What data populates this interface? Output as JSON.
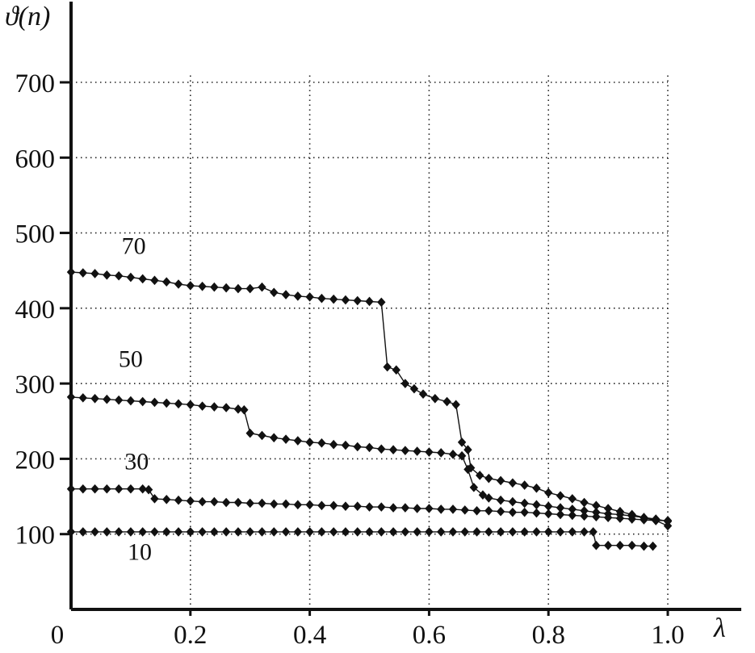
{
  "chart_data": {
    "type": "line",
    "title": "",
    "ylabel": "ϑ(n)",
    "xlabel": "λ",
    "xlim": [
      0,
      1.08
    ],
    "ylim": [
      0,
      770
    ],
    "grid": "dotted",
    "legend_position": "none",
    "marker": "diamond",
    "color": "#111111",
    "yticks": [
      {
        "value": 100,
        "label": "100"
      },
      {
        "value": 200,
        "label": "200"
      },
      {
        "value": 300,
        "label": "300"
      },
      {
        "value": 400,
        "label": "400"
      },
      {
        "value": 500,
        "label": "500"
      },
      {
        "value": 600,
        "label": "600"
      },
      {
        "value": 700,
        "label": "700"
      }
    ],
    "xticks": [
      {
        "value": 0,
        "label": "0"
      },
      {
        "value": 0.2,
        "label": "0.2"
      },
      {
        "value": 0.4,
        "label": "0.4"
      },
      {
        "value": 0.6,
        "label": "0.6"
      },
      {
        "value": 0.8,
        "label": "0.8"
      },
      {
        "value": 1.0,
        "label": "1.0"
      }
    ],
    "series": [
      {
        "name": "70",
        "label": "70",
        "label_x": 0.105,
        "label_y": 472,
        "points": [
          [
            0,
            448
          ],
          [
            0.02,
            447
          ],
          [
            0.04,
            446
          ],
          [
            0.06,
            444
          ],
          [
            0.08,
            443
          ],
          [
            0.1,
            441
          ],
          [
            0.12,
            439
          ],
          [
            0.14,
            437
          ],
          [
            0.16,
            435
          ],
          [
            0.18,
            432
          ],
          [
            0.2,
            430
          ],
          [
            0.22,
            429
          ],
          [
            0.24,
            428
          ],
          [
            0.26,
            427
          ],
          [
            0.28,
            426
          ],
          [
            0.3,
            426
          ],
          [
            0.32,
            428
          ],
          [
            0.34,
            421
          ],
          [
            0.36,
            418
          ],
          [
            0.38,
            416
          ],
          [
            0.4,
            415
          ],
          [
            0.42,
            413
          ],
          [
            0.44,
            412
          ],
          [
            0.46,
            411
          ],
          [
            0.48,
            410
          ],
          [
            0.5,
            409
          ],
          [
            0.52,
            408
          ],
          [
            0.53,
            322
          ],
          [
            0.545,
            318
          ],
          [
            0.56,
            300
          ],
          [
            0.575,
            293
          ],
          [
            0.59,
            286
          ],
          [
            0.61,
            280
          ],
          [
            0.63,
            276
          ],
          [
            0.645,
            272
          ],
          [
            0.655,
            222
          ],
          [
            0.665,
            212
          ],
          [
            0.67,
            188
          ],
          [
            0.685,
            178
          ],
          [
            0.7,
            174
          ],
          [
            0.72,
            171
          ],
          [
            0.74,
            168
          ],
          [
            0.76,
            165
          ],
          [
            0.78,
            161
          ],
          [
            0.8,
            155
          ],
          [
            0.82,
            151
          ],
          [
            0.84,
            147
          ],
          [
            0.86,
            142
          ],
          [
            0.88,
            138
          ],
          [
            0.9,
            134
          ],
          [
            0.92,
            130
          ],
          [
            0.94,
            126
          ],
          [
            0.96,
            122
          ],
          [
            0.98,
            118
          ],
          [
            1.0,
            111
          ]
        ]
      },
      {
        "name": "50",
        "label": "50",
        "label_x": 0.1,
        "label_y": 322,
        "points": [
          [
            0,
            282
          ],
          [
            0.02,
            281
          ],
          [
            0.04,
            280
          ],
          [
            0.06,
            279
          ],
          [
            0.08,
            278
          ],
          [
            0.1,
            277
          ],
          [
            0.12,
            276
          ],
          [
            0.14,
            275
          ],
          [
            0.16,
            274
          ],
          [
            0.18,
            273
          ],
          [
            0.2,
            272
          ],
          [
            0.22,
            270
          ],
          [
            0.24,
            269
          ],
          [
            0.26,
            268
          ],
          [
            0.28,
            266
          ],
          [
            0.29,
            265
          ],
          [
            0.3,
            234
          ],
          [
            0.32,
            231
          ],
          [
            0.34,
            228
          ],
          [
            0.36,
            226
          ],
          [
            0.38,
            224
          ],
          [
            0.4,
            222
          ],
          [
            0.42,
            221
          ],
          [
            0.44,
            219
          ],
          [
            0.46,
            218
          ],
          [
            0.48,
            216
          ],
          [
            0.5,
            215
          ],
          [
            0.52,
            213
          ],
          [
            0.54,
            212
          ],
          [
            0.56,
            211
          ],
          [
            0.58,
            210
          ],
          [
            0.6,
            209
          ],
          [
            0.62,
            208
          ],
          [
            0.64,
            206
          ],
          [
            0.655,
            204
          ],
          [
            0.665,
            186
          ],
          [
            0.675,
            162
          ],
          [
            0.69,
            152
          ],
          [
            0.7,
            148
          ],
          [
            0.72,
            145
          ],
          [
            0.74,
            143
          ],
          [
            0.76,
            141
          ],
          [
            0.78,
            139
          ],
          [
            0.8,
            137
          ],
          [
            0.82,
            135
          ],
          [
            0.84,
            133
          ],
          [
            0.86,
            131
          ],
          [
            0.88,
            129
          ],
          [
            0.9,
            127
          ],
          [
            0.92,
            126
          ],
          [
            0.94,
            124
          ],
          [
            0.96,
            122
          ],
          [
            0.98,
            120
          ],
          [
            1.0,
            117
          ]
        ]
      },
      {
        "name": "30",
        "label": "30",
        "label_x": 0.11,
        "label_y": 186,
        "points": [
          [
            0,
            160
          ],
          [
            0.02,
            160
          ],
          [
            0.04,
            160
          ],
          [
            0.06,
            160
          ],
          [
            0.08,
            160
          ],
          [
            0.1,
            160
          ],
          [
            0.12,
            160
          ],
          [
            0.13,
            159
          ],
          [
            0.14,
            147
          ],
          [
            0.16,
            146
          ],
          [
            0.18,
            145
          ],
          [
            0.2,
            144
          ],
          [
            0.22,
            143
          ],
          [
            0.24,
            143
          ],
          [
            0.26,
            142
          ],
          [
            0.28,
            142
          ],
          [
            0.3,
            141
          ],
          [
            0.32,
            141
          ],
          [
            0.34,
            140
          ],
          [
            0.36,
            140
          ],
          [
            0.38,
            139
          ],
          [
            0.4,
            139
          ],
          [
            0.42,
            138
          ],
          [
            0.44,
            138
          ],
          [
            0.46,
            137
          ],
          [
            0.48,
            137
          ],
          [
            0.5,
            136
          ],
          [
            0.52,
            136
          ],
          [
            0.54,
            135
          ],
          [
            0.56,
            135
          ],
          [
            0.58,
            134
          ],
          [
            0.6,
            134
          ],
          [
            0.62,
            133
          ],
          [
            0.64,
            133
          ],
          [
            0.66,
            132
          ],
          [
            0.68,
            131
          ],
          [
            0.7,
            131
          ],
          [
            0.72,
            130
          ],
          [
            0.74,
            129
          ],
          [
            0.76,
            129
          ],
          [
            0.78,
            128
          ],
          [
            0.8,
            127
          ],
          [
            0.82,
            126
          ],
          [
            0.84,
            125
          ],
          [
            0.86,
            124
          ],
          [
            0.88,
            123
          ],
          [
            0.9,
            122
          ],
          [
            0.92,
            121
          ],
          [
            0.94,
            120
          ],
          [
            0.96,
            119
          ],
          [
            0.98,
            118
          ],
          [
            1.0,
            118
          ]
        ]
      },
      {
        "name": "10",
        "label": "10",
        "label_x": 0.115,
        "label_y": 66,
        "points": [
          [
            0,
            103
          ],
          [
            0.02,
            103
          ],
          [
            0.04,
            103
          ],
          [
            0.06,
            103
          ],
          [
            0.08,
            103
          ],
          [
            0.1,
            103
          ],
          [
            0.12,
            103
          ],
          [
            0.14,
            103
          ],
          [
            0.16,
            103
          ],
          [
            0.18,
            103
          ],
          [
            0.2,
            103
          ],
          [
            0.22,
            103
          ],
          [
            0.24,
            103
          ],
          [
            0.26,
            103
          ],
          [
            0.28,
            103
          ],
          [
            0.3,
            103
          ],
          [
            0.32,
            103
          ],
          [
            0.34,
            103
          ],
          [
            0.36,
            103
          ],
          [
            0.38,
            103
          ],
          [
            0.4,
            103
          ],
          [
            0.42,
            103
          ],
          [
            0.44,
            103
          ],
          [
            0.46,
            103
          ],
          [
            0.48,
            103
          ],
          [
            0.5,
            103
          ],
          [
            0.52,
            103
          ],
          [
            0.54,
            103
          ],
          [
            0.56,
            103
          ],
          [
            0.58,
            103
          ],
          [
            0.6,
            103
          ],
          [
            0.62,
            103
          ],
          [
            0.64,
            103
          ],
          [
            0.66,
            103
          ],
          [
            0.68,
            103
          ],
          [
            0.7,
            103
          ],
          [
            0.72,
            103
          ],
          [
            0.74,
            103
          ],
          [
            0.76,
            103
          ],
          [
            0.78,
            103
          ],
          [
            0.8,
            103
          ],
          [
            0.82,
            103
          ],
          [
            0.84,
            103
          ],
          [
            0.86,
            103
          ],
          [
            0.875,
            103
          ],
          [
            0.88,
            85
          ],
          [
            0.9,
            85
          ],
          [
            0.92,
            85
          ],
          [
            0.94,
            85
          ],
          [
            0.96,
            84
          ],
          [
            0.975,
            84
          ]
        ]
      }
    ]
  }
}
